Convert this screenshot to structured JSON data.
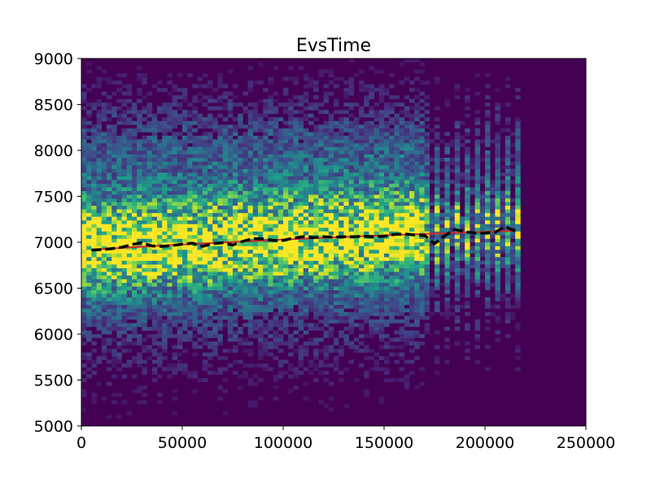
{
  "chart_data": {
    "type": "heatmap",
    "title": "EvsTime",
    "xlabel": "",
    "ylabel": "",
    "xlim": [
      0,
      250000
    ],
    "ylim": [
      5000,
      9000
    ],
    "x_ticks": [
      0,
      50000,
      100000,
      150000,
      200000,
      250000
    ],
    "y_ticks": [
      5000,
      5500,
      6000,
      6500,
      7000,
      7500,
      8000,
      8500,
      9000
    ],
    "x_tick_labels": [
      "0",
      "50000",
      "100000",
      "150000",
      "200000",
      "250000"
    ],
    "y_tick_labels": [
      "5000",
      "5500",
      "6000",
      "6500",
      "7000",
      "7500",
      "8000",
      "8500",
      "9000"
    ],
    "colormap": "viridis",
    "background_color": "#440154",
    "heatmap_bins": {
      "x_bins": 100,
      "y_bins": 100
    },
    "density_band": {
      "x_range_dense": [
        0,
        170000
      ],
      "x_range_sparse": [
        170000,
        217000
      ],
      "center_y_at_x_start": 6920,
      "center_y_at_x_end": 7130
    },
    "series": [
      {
        "style": "line",
        "color": "#d62728",
        "x": [
          5000,
          50000,
          100000,
          150000,
          215000
        ],
        "y": [
          6920,
          6975,
          7030,
          7075,
          7125
        ]
      },
      {
        "style": "dashed",
        "color": "#000000",
        "x": [
          5000,
          10000,
          15000,
          20000,
          25000,
          30000,
          35000,
          40000,
          45000,
          50000,
          55000,
          60000,
          65000,
          70000,
          75000,
          80000,
          85000,
          90000,
          95000,
          100000,
          105000,
          110000,
          115000,
          120000,
          125000,
          130000,
          135000,
          140000,
          145000,
          150000,
          155000,
          160000,
          165000,
          170000,
          175000,
          180000,
          185000,
          190000,
          195000,
          200000,
          205000,
          210000,
          215000
        ],
        "y": [
          6915,
          6920,
          6930,
          6945,
          6975,
          6995,
          6960,
          6955,
          6965,
          6980,
          6990,
          6955,
          6985,
          6995,
          6970,
          7010,
          7040,
          7035,
          7020,
          7020,
          7045,
          7060,
          7050,
          7060,
          7055,
          7060,
          7060,
          7065,
          7060,
          7065,
          7085,
          7090,
          7080,
          7075,
          6985,
          7070,
          7140,
          7115,
          7100,
          7100,
          7110,
          7170,
          7120
        ]
      }
    ]
  }
}
